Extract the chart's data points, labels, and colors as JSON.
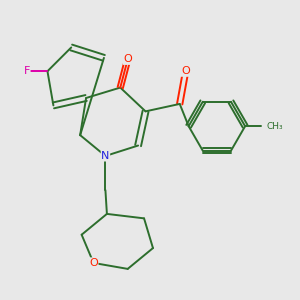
{
  "bg_color": "#e8e8e8",
  "bond_color": "#2d6e2d",
  "atom_colors": {
    "O": "#ff2200",
    "N": "#2222dd",
    "F": "#dd00aa",
    "C": "#2d6e2d"
  },
  "font_size_atom": 8,
  "figsize": [
    3.0,
    3.0
  ],
  "dpi": 100
}
